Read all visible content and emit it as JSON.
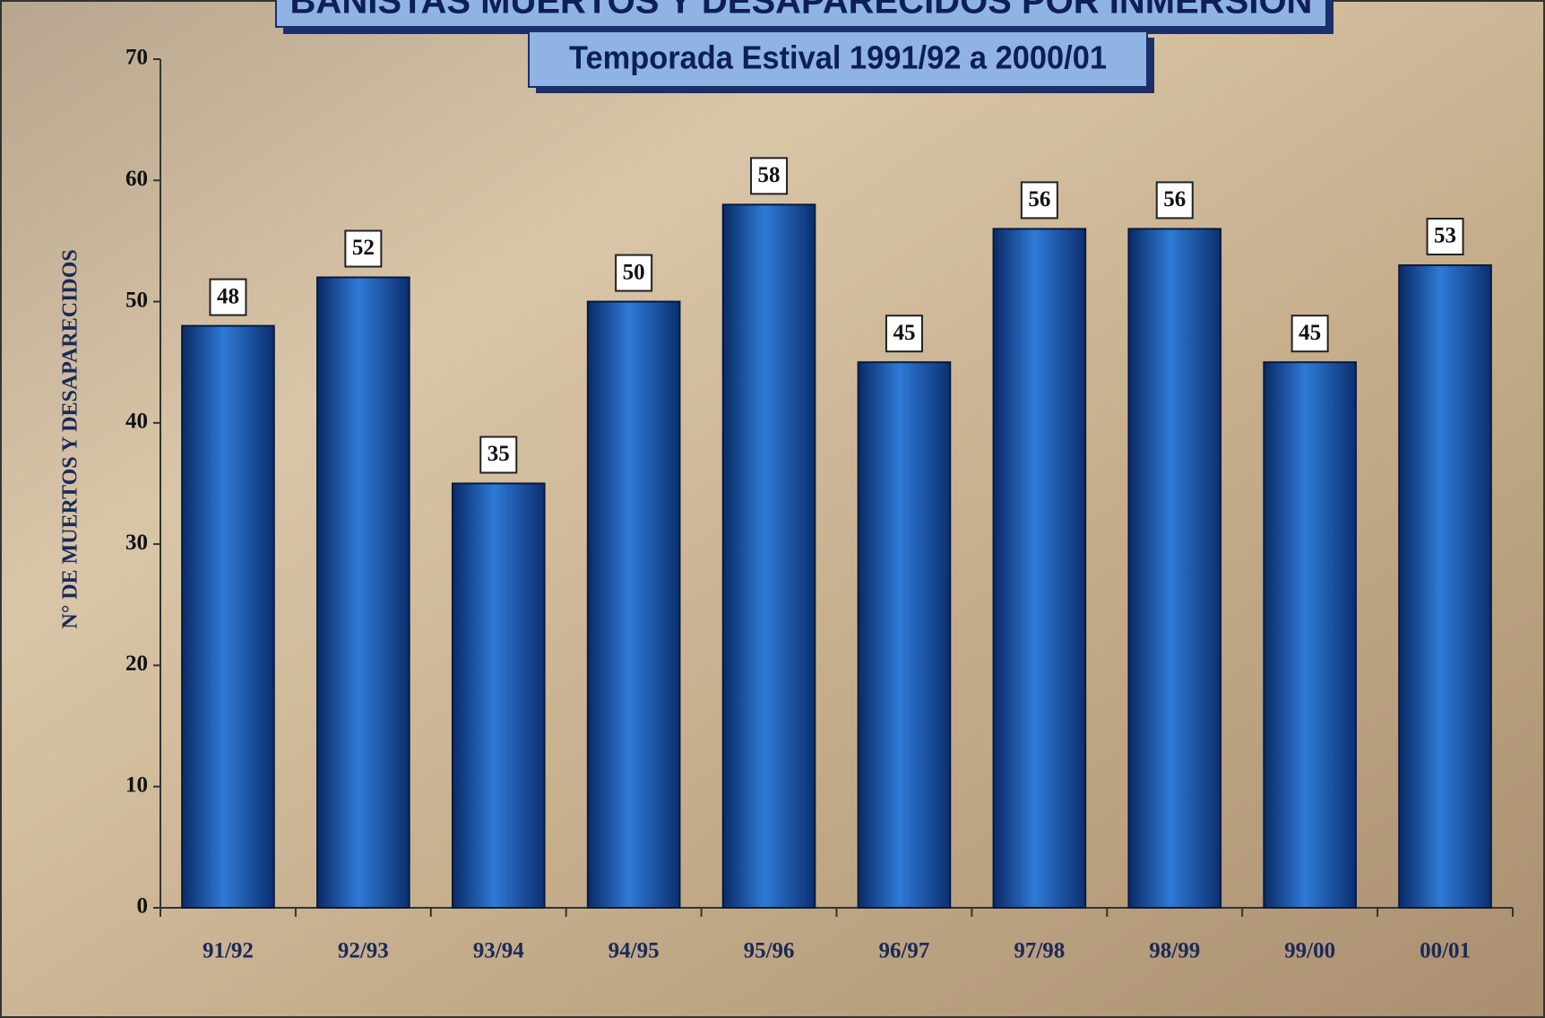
{
  "chart_data": {
    "type": "bar",
    "title": "BAÑISTAS MUERTOS Y DESAPARECIDOS POR INMERSIÓN",
    "subtitle": "Temporada Estival 1991/92 a 2000/01",
    "y_label": "N° DE MUERTOS Y DESAPARECIDOS",
    "categories": [
      "91/92",
      "92/93",
      "93/94",
      "94/95",
      "95/96",
      "96/97",
      "97/98",
      "98/99",
      "99/00",
      "00/01"
    ],
    "values": [
      48,
      52,
      35,
      50,
      58,
      45,
      56,
      56,
      45,
      53
    ],
    "color": "#1f5fb4",
    "ylim": [
      0,
      70
    ],
    "yticks": [
      0,
      10,
      20,
      30,
      40,
      50,
      60,
      70
    ]
  }
}
